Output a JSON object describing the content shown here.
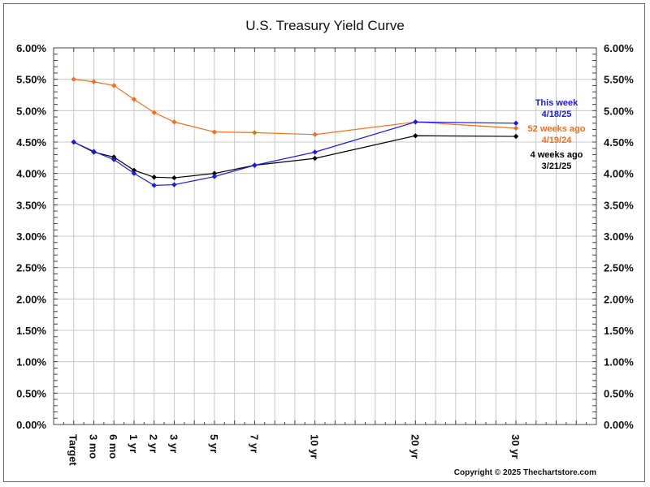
{
  "chart_data": {
    "type": "line",
    "title": "U.S. Treasury Yield Curve",
    "xlabel": "",
    "ylabel": "",
    "categories": [
      "Target",
      "3 mo",
      "6 mo",
      "1 yr",
      "2 yr",
      "3 yr",
      "5 yr",
      "7 yr",
      "10 yr",
      "20 yr",
      "30 yr"
    ],
    "category_positions": [
      1,
      2,
      3,
      4,
      5,
      6,
      8,
      10,
      13,
      18,
      23
    ],
    "x_range": [
      0,
      27
    ],
    "ylim": [
      0,
      6
    ],
    "y_ticks": [
      "0.00%",
      "0.50%",
      "1.00%",
      "1.50%",
      "2.00%",
      "2.50%",
      "3.00%",
      "3.50%",
      "4.00%",
      "4.50%",
      "5.00%",
      "5.50%",
      "6.00%"
    ],
    "y_tick_values": [
      0,
      0.5,
      1,
      1.5,
      2,
      2.5,
      3,
      3.5,
      4,
      4.5,
      5,
      5.5,
      6
    ],
    "grid": true,
    "legend_position": "right",
    "series": [
      {
        "name": "52 weeks ago",
        "date": "4/19/24",
        "color": "#f07020",
        "values": [
          5.5,
          5.46,
          5.4,
          5.18,
          4.97,
          4.82,
          4.66,
          4.65,
          4.62,
          4.82,
          4.72
        ]
      },
      {
        "name": "4 weeks ago",
        "date": "3/21/25",
        "color": "#000000",
        "values": [
          4.5,
          4.34,
          4.26,
          4.05,
          3.94,
          3.93,
          4.0,
          4.13,
          4.24,
          4.6,
          4.59
        ]
      },
      {
        "name": "This week",
        "date": "4/18/25",
        "color": "#1a1ae0",
        "values": [
          4.5,
          4.35,
          4.22,
          4.0,
          3.81,
          3.82,
          3.95,
          4.13,
          4.34,
          4.82,
          4.8
        ]
      }
    ],
    "legend_order": [
      "This week",
      "52 weeks ago",
      "4 weeks ago"
    ]
  },
  "footer": {
    "copyright": "Copyright © 2025 Thechartstore.com"
  }
}
